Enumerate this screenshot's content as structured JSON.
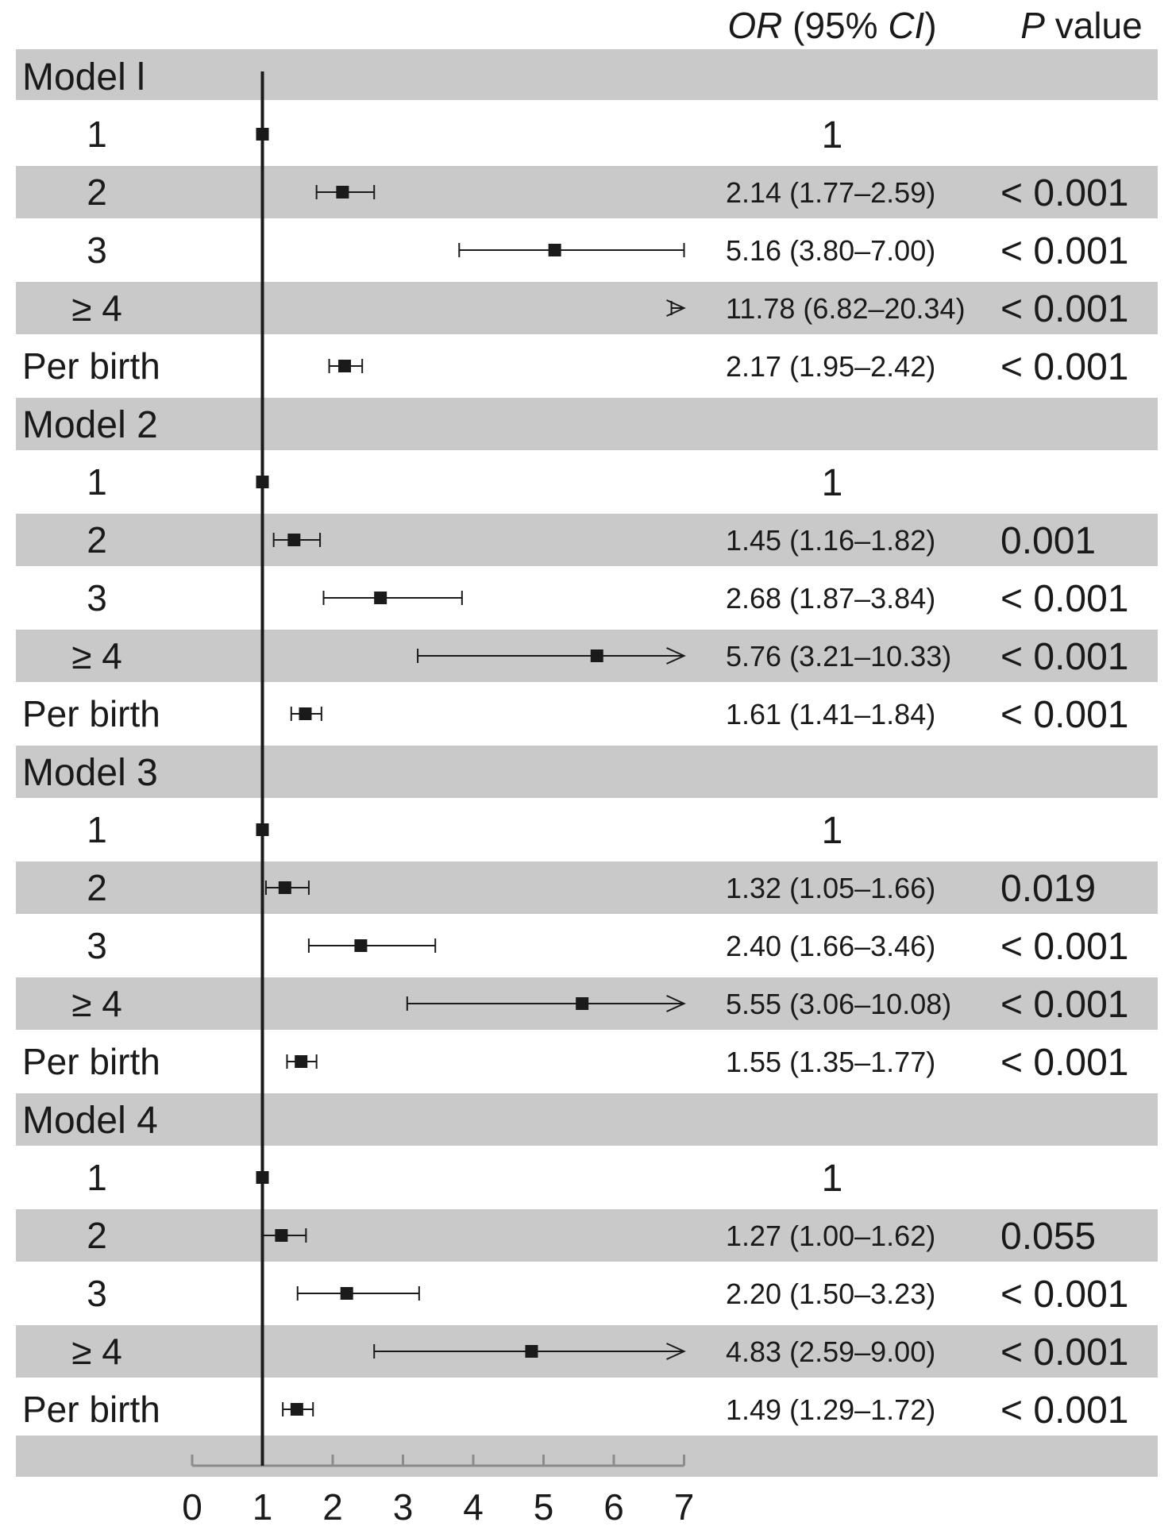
{
  "chart_data": {
    "type": "forest",
    "header": {
      "or_italic": "OR",
      "or_mid": " (95% ",
      "or_ci_italic": "CI",
      "or_close": ")",
      "p_italic": "P",
      "p_rest": " value"
    },
    "reference_line": 1,
    "xlim": [
      0,
      7
    ],
    "xticks": [
      0,
      1,
      2,
      3,
      4,
      5,
      6,
      7
    ],
    "models": [
      {
        "label": "Model l",
        "rows": [
          {
            "label": "1",
            "or": 1,
            "lo": 1,
            "hi": 1,
            "ci_text": "1",
            "p": "",
            "ref": true
          },
          {
            "label": "2",
            "or": 2.14,
            "lo": 1.77,
            "hi": 2.59,
            "ci_text": "2.14 (1.77–2.59)",
            "p": "< 0.001"
          },
          {
            "label": "3",
            "or": 5.16,
            "lo": 3.8,
            "hi": 7.0,
            "ci_text": "5.16 (3.80–7.00)",
            "p": "< 0.001"
          },
          {
            "label": "≥ 4",
            "or": 11.78,
            "lo": 6.82,
            "hi": 20.34,
            "ci_text": "11.78 (6.82–20.34)",
            "p": "< 0.001"
          },
          {
            "label": "Per birth",
            "or": 2.17,
            "lo": 1.95,
            "hi": 2.42,
            "ci_text": "2.17 (1.95–2.42)",
            "p": "< 0.001"
          }
        ]
      },
      {
        "label": "Model 2",
        "rows": [
          {
            "label": "1",
            "or": 1,
            "lo": 1,
            "hi": 1,
            "ci_text": "1",
            "p": "",
            "ref": true
          },
          {
            "label": "2",
            "or": 1.45,
            "lo": 1.16,
            "hi": 1.82,
            "ci_text": "1.45 (1.16–1.82)",
            "p": "0.001"
          },
          {
            "label": "3",
            "or": 2.68,
            "lo": 1.87,
            "hi": 3.84,
            "ci_text": "2.68 (1.87–3.84)",
            "p": "< 0.001"
          },
          {
            "label": "≥ 4",
            "or": 5.76,
            "lo": 3.21,
            "hi": 10.33,
            "ci_text": "5.76 (3.21–10.33)",
            "p": "< 0.001"
          },
          {
            "label": "Per birth",
            "or": 1.61,
            "lo": 1.41,
            "hi": 1.84,
            "ci_text": "1.61 (1.41–1.84)",
            "p": "< 0.001"
          }
        ]
      },
      {
        "label": "Model 3",
        "rows": [
          {
            "label": "1",
            "or": 1,
            "lo": 1,
            "hi": 1,
            "ci_text": "1",
            "p": "",
            "ref": true
          },
          {
            "label": "2",
            "or": 1.32,
            "lo": 1.05,
            "hi": 1.66,
            "ci_text": "1.32 (1.05–1.66)",
            "p": "0.019"
          },
          {
            "label": "3",
            "or": 2.4,
            "lo": 1.66,
            "hi": 3.46,
            "ci_text": "2.40 (1.66–3.46)",
            "p": "< 0.001"
          },
          {
            "label": "≥ 4",
            "or": 5.55,
            "lo": 3.06,
            "hi": 10.08,
            "ci_text": "5.55 (3.06–10.08)",
            "p": "< 0.001"
          },
          {
            "label": "Per birth",
            "or": 1.55,
            "lo": 1.35,
            "hi": 1.77,
            "ci_text": "1.55 (1.35–1.77)",
            "p": "< 0.001"
          }
        ]
      },
      {
        "label": "Model 4",
        "rows": [
          {
            "label": "1",
            "or": 1,
            "lo": 1,
            "hi": 1,
            "ci_text": "1",
            "p": "",
            "ref": true
          },
          {
            "label": "2",
            "or": 1.27,
            "lo": 1.0,
            "hi": 1.62,
            "ci_text": "1.27 (1.00–1.62)",
            "p": "0.055"
          },
          {
            "label": "3",
            "or": 2.2,
            "lo": 1.5,
            "hi": 3.23,
            "ci_text": "2.20 (1.50–3.23)",
            "p": "< 0.001"
          },
          {
            "label": "≥ 4",
            "or": 4.83,
            "lo": 2.59,
            "hi": 9.0,
            "ci_text": "4.83 (2.59–9.00)",
            "p": "< 0.001"
          },
          {
            "label": "Per birth",
            "or": 1.49,
            "lo": 1.29,
            "hi": 1.72,
            "ci_text": "1.49 (1.29–1.72)",
            "p": "< 0.001"
          }
        ]
      }
    ],
    "colors": {
      "band": "#c9c9c9",
      "ink": "#1a1a1a",
      "axis": "#8c8c8c"
    }
  }
}
